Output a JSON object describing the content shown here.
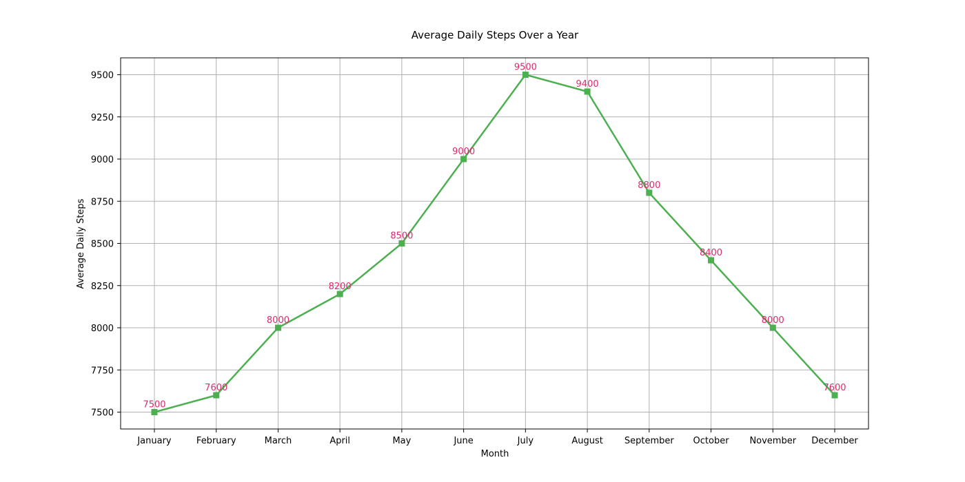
{
  "chart_data": {
    "type": "line",
    "title": "Average Daily Steps Over a Year",
    "xlabel": "Month",
    "ylabel": "Average Daily Steps",
    "categories": [
      "January",
      "February",
      "March",
      "April",
      "May",
      "June",
      "July",
      "August",
      "September",
      "October",
      "November",
      "December"
    ],
    "values": [
      7500,
      7600,
      8000,
      8200,
      8500,
      9000,
      9500,
      9400,
      8800,
      8400,
      8000,
      7600
    ],
    "data_labels": [
      "7500",
      "7600",
      "8000",
      "8200",
      "8500",
      "9000",
      "9500",
      "9400",
      "8800",
      "8400",
      "8000",
      "7600"
    ],
    "yticks": [
      7500,
      7750,
      8000,
      8250,
      8500,
      8750,
      9000,
      9250,
      9500
    ],
    "ytick_labels": [
      "7500",
      "7750",
      "8000",
      "8250",
      "8500",
      "8750",
      "9000",
      "9250",
      "9500"
    ],
    "ylim": [
      7400,
      9600
    ],
    "grid": true,
    "legend": false,
    "marker": "square",
    "colors": {
      "line": "#4caf50",
      "marker": "#4caf50",
      "data_label": "#e3266f",
      "grid": "#b0b0b0",
      "axes": "#000000",
      "background": "#ffffff"
    }
  }
}
